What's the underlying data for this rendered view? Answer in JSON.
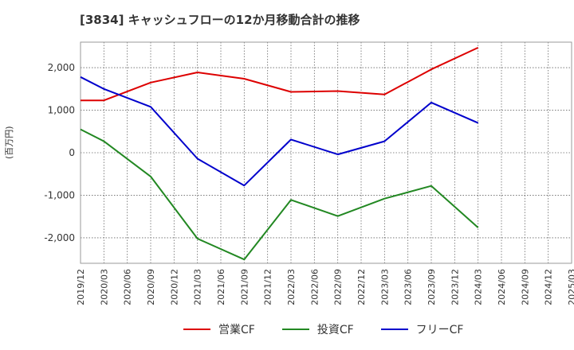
{
  "chart_data": {
    "type": "line",
    "title": "[3834]  キャッシュフローの12か月移動合計の推移",
    "ylabel": "(百万円)",
    "xlabel": "",
    "x_ticks": [
      "2019/12",
      "2020/03",
      "2020/06",
      "2020/09",
      "2020/12",
      "2021/03",
      "2021/06",
      "2021/09",
      "2021/12",
      "2022/03",
      "2022/06",
      "2022/09",
      "2022/12",
      "2023/03",
      "2023/06",
      "2023/09",
      "2023/12",
      "2024/03",
      "2024/06",
      "2024/09",
      "2024/12",
      "2025/03"
    ],
    "y_ticks": [
      2000,
      1000,
      0,
      -1000,
      -2000
    ],
    "y_tick_labels": [
      "2,000",
      "1,000",
      "0",
      "-1,000",
      "-2,000"
    ],
    "ylim": [
      -2600,
      2600
    ],
    "grid": true,
    "legend_position": "bottom",
    "series": [
      {
        "name": "営業CF",
        "color": "#dd0000",
        "points": [
          {
            "x": "2019/12",
            "y": 1230
          },
          {
            "x": "2020/03",
            "y": 1230
          },
          {
            "x": "2020/09",
            "y": 1650
          },
          {
            "x": "2021/03",
            "y": 1890
          },
          {
            "x": "2021/09",
            "y": 1740
          },
          {
            "x": "2022/03",
            "y": 1430
          },
          {
            "x": "2022/09",
            "y": 1450
          },
          {
            "x": "2023/03",
            "y": 1370
          },
          {
            "x": "2023/09",
            "y": 1960
          },
          {
            "x": "2024/03",
            "y": 2470
          }
        ]
      },
      {
        "name": "投資CF",
        "color": "#228822",
        "points": [
          {
            "x": "2019/12",
            "y": 550
          },
          {
            "x": "2020/03",
            "y": 270
          },
          {
            "x": "2020/09",
            "y": -560
          },
          {
            "x": "2021/03",
            "y": -2020
          },
          {
            "x": "2021/09",
            "y": -2510
          },
          {
            "x": "2022/03",
            "y": -1110
          },
          {
            "x": "2022/09",
            "y": -1490
          },
          {
            "x": "2023/03",
            "y": -1080
          },
          {
            "x": "2023/09",
            "y": -780
          },
          {
            "x": "2024/03",
            "y": -1760
          }
        ]
      },
      {
        "name": "フリーCF",
        "color": "#0000cc",
        "points": [
          {
            "x": "2019/12",
            "y": 1780
          },
          {
            "x": "2020/03",
            "y": 1500
          },
          {
            "x": "2020/09",
            "y": 1080
          },
          {
            "x": "2021/03",
            "y": -140
          },
          {
            "x": "2021/09",
            "y": -770
          },
          {
            "x": "2022/03",
            "y": 310
          },
          {
            "x": "2022/09",
            "y": -40
          },
          {
            "x": "2023/03",
            "y": 270
          },
          {
            "x": "2023/09",
            "y": 1180
          },
          {
            "x": "2024/03",
            "y": 700
          }
        ]
      }
    ]
  }
}
